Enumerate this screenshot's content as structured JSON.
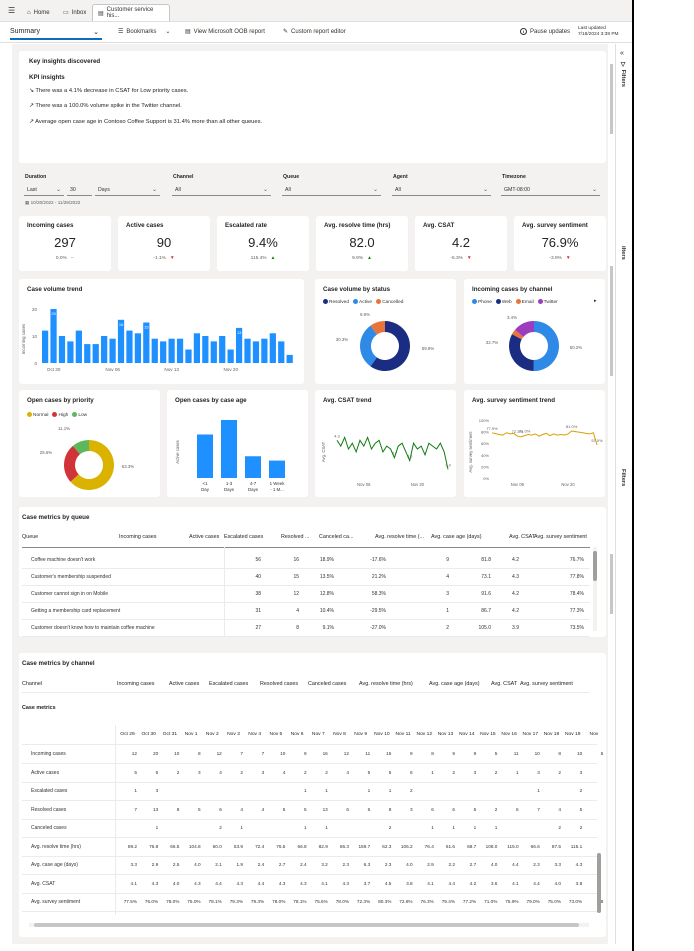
{
  "tabs": {
    "home": "Home",
    "inbox": "Inbox",
    "active": "Customer service his..."
  },
  "toolbar": {
    "summary": "Summary",
    "bookmarks": "Bookmarks",
    "oob": "View Microsoft OOB report",
    "custom": "Custom report editor",
    "pause": "Pause updates",
    "last_updated_label": "Last updated",
    "last_updated_value": "7/18/2024 3:38 PM"
  },
  "insights": {
    "title": "Key insights discovered",
    "subtitle": "KPI insights",
    "items": [
      "There was a 4.1% decrease in CSAT for Low priority cases.",
      "There was a 100.0% volume spike in the Twitter channel.",
      "Average open case age in Contoso Coffee Support is 31.4% more than all other queues."
    ]
  },
  "filters": {
    "duration_label": "Duration",
    "duration_mode": "Last",
    "duration_num": "30",
    "duration_unit": "Days",
    "date_range": "10/30/2022 - 11/28/2022",
    "channel_label": "Channel",
    "channel": "All",
    "queue_label": "Queue",
    "queue": "All",
    "agent_label": "Agent",
    "agent": "All",
    "tz_label": "Timezone",
    "tz": "GMT-08:00"
  },
  "kpis": [
    {
      "title": "Incoming cases",
      "value": "297",
      "change": "0.0%",
      "trend": "--"
    },
    {
      "title": "Active cases",
      "value": "90",
      "change": "-1.1%",
      "trend": "down"
    },
    {
      "title": "Escalated rate",
      "value": "9.4%",
      "change": "115.4%",
      "trend": "up"
    },
    {
      "title": "Avg. resolve time (hrs)",
      "value": "82.0",
      "change": "9.9%",
      "trend": "up"
    },
    {
      "title": "Avg. CSAT",
      "value": "4.2",
      "change": "-5.3%",
      "trend": "down"
    },
    {
      "title": "Avg. survey sentiment",
      "value": "76.9%",
      "change": "-3.9%",
      "trend": "down"
    }
  ],
  "chart_data": [
    {
      "type": "bar",
      "title": "Case volume trend",
      "ylabel": "Incoming cases",
      "ylim": [
        0,
        20
      ],
      "yticks": [
        "20",
        "10",
        "0"
      ],
      "xticks": [
        "Oct 30",
        "Nov 06",
        "Nov 13",
        "Nov 20"
      ],
      "values": [
        12,
        20,
        10,
        8,
        12,
        7,
        7,
        10,
        9,
        16,
        12,
        11,
        15,
        9,
        8,
        9,
        9,
        5,
        11,
        10,
        8,
        10,
        5,
        13,
        9,
        8,
        9,
        11,
        8,
        3
      ],
      "labels": [
        "",
        "20",
        "",
        "",
        "",
        "",
        "",
        "",
        "",
        "16",
        "",
        "",
        "15",
        "",
        "",
        "",
        "",
        "",
        "",
        "",
        "",
        "",
        "",
        "13",
        "",
        "",
        "",
        "",
        "",
        ""
      ]
    },
    {
      "type": "pie",
      "title": "Case volume by status",
      "legend": [
        "Resolved",
        "Active",
        "Cancelled"
      ],
      "values": [
        59.9,
        30.3,
        9.8
      ],
      "labels": [
        "59.9%",
        "30.3%",
        "9.8%"
      ],
      "colors": [
        "#1a2d83",
        "#2e8ae6",
        "#e8743b"
      ]
    },
    {
      "type": "pie",
      "title": "Incoming cases by channel",
      "legend": [
        "Phone",
        "Web",
        "Email",
        "Twitter"
      ],
      "values": [
        50.2,
        32.7,
        3.4,
        13.7
      ],
      "labels": [
        "50.2%",
        "32.7%",
        "3.4%",
        ""
      ],
      "colors": [
        "#2e8ae6",
        "#1a2d83",
        "#e8743b",
        "#9c3dbd"
      ]
    },
    {
      "type": "pie",
      "title": "Open cases by priority",
      "legend": [
        "Normal",
        "High",
        "Low"
      ],
      "values": [
        63.3,
        25.6,
        11.1
      ],
      "labels": [
        "63.3%",
        "25.6%",
        "11.1%"
      ],
      "colors": [
        "#d9b300",
        "#d13438",
        "#5db85c"
      ]
    },
    {
      "type": "bar",
      "title": "Open cases by case age",
      "ylabel": "Active cases",
      "xlabel": "Case age description",
      "categories": [
        "<1 Day",
        "1-3 Days",
        "4-7 Days",
        "1 Week - 1 M..."
      ],
      "values": [
        30,
        40,
        15,
        12
      ],
      "ylim": [
        0,
        40
      ]
    },
    {
      "type": "line",
      "title": "Avg. CSAT trend",
      "ylabel": "Avg. CSAT",
      "xticks": [
        "Nov 06",
        "Nov 20"
      ],
      "values": [
        4.3,
        4.1,
        4.4,
        4.0,
        4.2,
        3.9,
        4.3,
        4.1,
        4.4,
        4.0,
        4.2,
        4.3,
        3.9,
        4.1,
        4.0,
        3.7,
        4.1,
        4.2,
        3.9,
        3.6,
        4.2,
        4.0,
        4.1,
        3.8,
        4.2,
        4.1,
        4.0,
        4.2,
        3.9,
        3.3
      ],
      "labels": {
        "0": "4.3",
        "15": "3.7",
        "19": "3.6",
        "29": "3.3"
      },
      "ylim": [
        3,
        5
      ]
    },
    {
      "type": "line",
      "title": "Avg. survey sentiment trend",
      "ylabel": "Avg. survey sentiment",
      "yticks": [
        "100%",
        "80%",
        "60%",
        "40%",
        "20%",
        "0%"
      ],
      "xticks": [
        "Nov 06",
        "Nov 20"
      ],
      "values": [
        77.9,
        76.5,
        75,
        74,
        78,
        76,
        77,
        72.3,
        71.0,
        73,
        75,
        74,
        76,
        72,
        75,
        77,
        73,
        76,
        74,
        75,
        74,
        76,
        81.0,
        80,
        79,
        78,
        77,
        76,
        78,
        57.0
      ],
      "labels": {
        "0": "77.9%",
        "7": "72.3%",
        "9": "71.0%",
        "22": "81.0%",
        "29": "57.0%"
      },
      "ylim": [
        0,
        100
      ]
    }
  ],
  "queue_table": {
    "title": "Case metrics by queue",
    "headers": [
      "Queue",
      "Incoming cases",
      "Active cases",
      "Escalated cases",
      "Resolved ...",
      "Canceled ca...",
      "Avg. resolve time (...",
      "Avg. case age (days)",
      "Avg. CSAT",
      "Avg. survey sentiment"
    ],
    "rows": [
      [
        "Coffee machine doesn't work",
        "56",
        "16",
        "18.9%",
        "-17.6%",
        "9",
        "81.8",
        "4.2",
        "76.7%"
      ],
      [
        "Customer's membership suspended",
        "40",
        "15",
        "13.5%",
        "21.2%",
        "4",
        "73.1",
        "4.3",
        "77.8%"
      ],
      [
        "Customer cannot sign in on Mobile",
        "38",
        "12",
        "12.8%",
        "58.3%",
        "3",
        "91.6",
        "4.2",
        "78.4%"
      ],
      [
        "Getting a membership card replacement",
        "31",
        "4",
        "10.4%",
        "-29.5%",
        "1",
        "86.7",
        "4.2",
        "77.3%"
      ],
      [
        "Customer doesn't know how to maintain coffee machine",
        "27",
        "8",
        "9.1%",
        "-27.0%",
        "2",
        "105.0",
        "3.9",
        "73.5%"
      ]
    ]
  },
  "channel_table": {
    "title": "Case metrics by channel",
    "headers": [
      "Channel",
      "Incoming cases",
      "Active cases",
      "Escalated cases",
      "Resolved cases",
      "Canceled cases",
      "Avg. resolve time (hrs)",
      "Avg. case age (days)",
      "Avg. CSAT",
      "Avg. survey sentiment"
    ],
    "sub_title": "Case metrics",
    "dates": [
      "Oct 29",
      "Oct 30",
      "Oct 31",
      "Nov 1",
      "Nov 2",
      "Nov 3",
      "Nov 4",
      "Nov 5",
      "Nov 6",
      "Nov 7",
      "Nov 8",
      "Nov 9",
      "Nov 10",
      "Nov 11",
      "Nov 12",
      "Nov 13",
      "Nov 14",
      "Nov 15",
      "Nov 16",
      "Nov 17",
      "Nov 18",
      "Nov 19",
      "Nov"
    ],
    "rows": [
      {
        "label": "Incoming cases",
        "vals": [
          "12",
          "20",
          "10",
          "8",
          "12",
          "7",
          "7",
          "10",
          "9",
          "16",
          "12",
          "11",
          "15",
          "9",
          "8",
          "9",
          "9",
          "5",
          "11",
          "10",
          "8",
          "10",
          "5"
        ]
      },
      {
        "label": "Active cases",
        "vals": [
          "5",
          "6",
          "2",
          "3",
          "4",
          "2",
          "3",
          "4",
          "2",
          "2",
          "4",
          "5",
          "5",
          "6",
          "1",
          "2",
          "3",
          "2",
          "1",
          "3",
          "2",
          "3",
          ""
        ]
      },
      {
        "label": "Escalated cases",
        "vals": [
          "1",
          "3",
          "",
          "",
          "",
          "",
          "",
          "",
          "1",
          "1",
          "",
          "1",
          "1",
          "2",
          "",
          "",
          "",
          "",
          "",
          "1",
          "",
          "2",
          ""
        ]
      },
      {
        "label": "Resolved cases",
        "vals": [
          "7",
          "13",
          "8",
          "5",
          "6",
          "4",
          "4",
          "5",
          "5",
          "13",
          "6",
          "6",
          "8",
          "3",
          "6",
          "6",
          "5",
          "2",
          "6",
          "7",
          "4",
          "5",
          ""
        ]
      },
      {
        "label": "Canceled cases",
        "vals": [
          "",
          "1",
          "",
          "",
          "2",
          "1",
          "",
          "",
          "1",
          "1",
          "",
          "",
          "2",
          "",
          "1",
          "1",
          "1",
          "1",
          "",
          "",
          "2",
          "2",
          ""
        ]
      },
      {
        "label": "Avg. resolve time (hrs)",
        "vals": [
          "89.2",
          "76.8",
          "66.5",
          "104.8",
          "60.0",
          "53.9",
          "72.4",
          "76.5",
          "66.8",
          "82.9",
          "66.3",
          "159.7",
          "62.3",
          "106.2",
          "76.4",
          "61.6",
          "68.7",
          "108.0",
          "115.0",
          "66.6",
          "87.5",
          "115.1",
          ""
        ]
      },
      {
        "label": "Avg. case age (days)",
        "vals": [
          "3.3",
          "2.9",
          "2.5",
          "4.0",
          "2.1",
          "1.9",
          "2.4",
          "2.7",
          "2.4",
          "3.2",
          "2.3",
          "6.3",
          "2.3",
          "4.0",
          "2.9",
          "2.2",
          "2.7",
          "4.0",
          "4.4",
          "2.3",
          "3.3",
          "4.3",
          ""
        ]
      },
      {
        "label": "Avg. CSAT",
        "vals": [
          "4.1",
          "4.3",
          "4.0",
          "4.3",
          "4.4",
          "4.3",
          "4.4",
          "4.3",
          "4.3",
          "4.1",
          "4.3",
          "3.7",
          "4.5",
          "3.8",
          "4.1",
          "4.4",
          "4.2",
          "3.6",
          "4.1",
          "4.4",
          "4.0",
          "3.8",
          ""
        ]
      },
      {
        "label": "Avg. survey sentiment",
        "vals": [
          "77.5%",
          "76.0%",
          "78.0%",
          "75.0%",
          "78.1%",
          "79.3%",
          "79.3%",
          "78.0%",
          "78.1%",
          "75.6%",
          "78.0%",
          "72.3%",
          "80.3%",
          "72.8%",
          "76.3%",
          "79.4%",
          "77.2%",
          "71.0%",
          "75.9%",
          "79.0%",
          "75.0%",
          "73.0%",
          "8"
        ]
      }
    ]
  },
  "side": {
    "filters": "Filters",
    "filters2": "ilters",
    "filters3": "Filters"
  }
}
